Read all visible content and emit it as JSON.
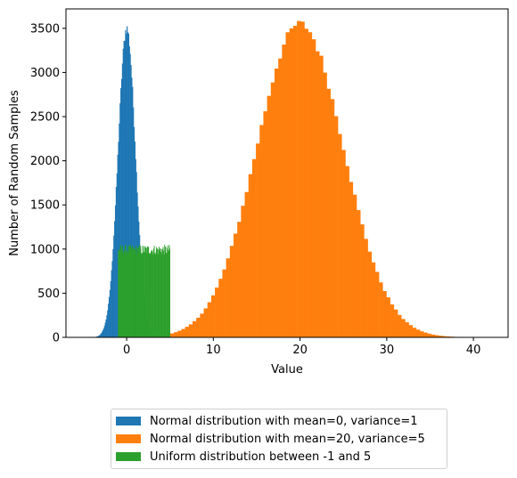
{
  "chart_data": {
    "type": "bar",
    "xlabel": "Value",
    "ylabel": "Number of Random Samples",
    "xlim": [
      -7,
      44
    ],
    "ylim": [
      0,
      3720
    ],
    "xticks": [
      0,
      10,
      20,
      30,
      40
    ],
    "yticks": [
      0,
      500,
      1000,
      1500,
      2000,
      2500,
      3000,
      3500
    ],
    "legend_position": "below chart, centered",
    "series": [
      {
        "name": "Normal distribution with mean=0, variance=1",
        "color": "#1f77b4",
        "distribution": "histogram",
        "peak_x": 0,
        "peak_count": 3500,
        "x_range": [
          -4.5,
          4.5
        ],
        "bin_width": 0.09
      },
      {
        "name": "Normal distribution with mean=20, variance=5",
        "color": "#ff7f0e",
        "distribution": "histogram",
        "peak_x": 20,
        "peak_count": 3550,
        "x_range": [
          -1,
          42
        ],
        "bin_width": 0.43
      },
      {
        "name": "Uniform distribution between -1 and 5",
        "color": "#2ca02c",
        "distribution": "histogram",
        "x_range": [
          -1,
          5
        ],
        "approx_count": 1000,
        "bin_width": 0.06
      }
    ]
  }
}
